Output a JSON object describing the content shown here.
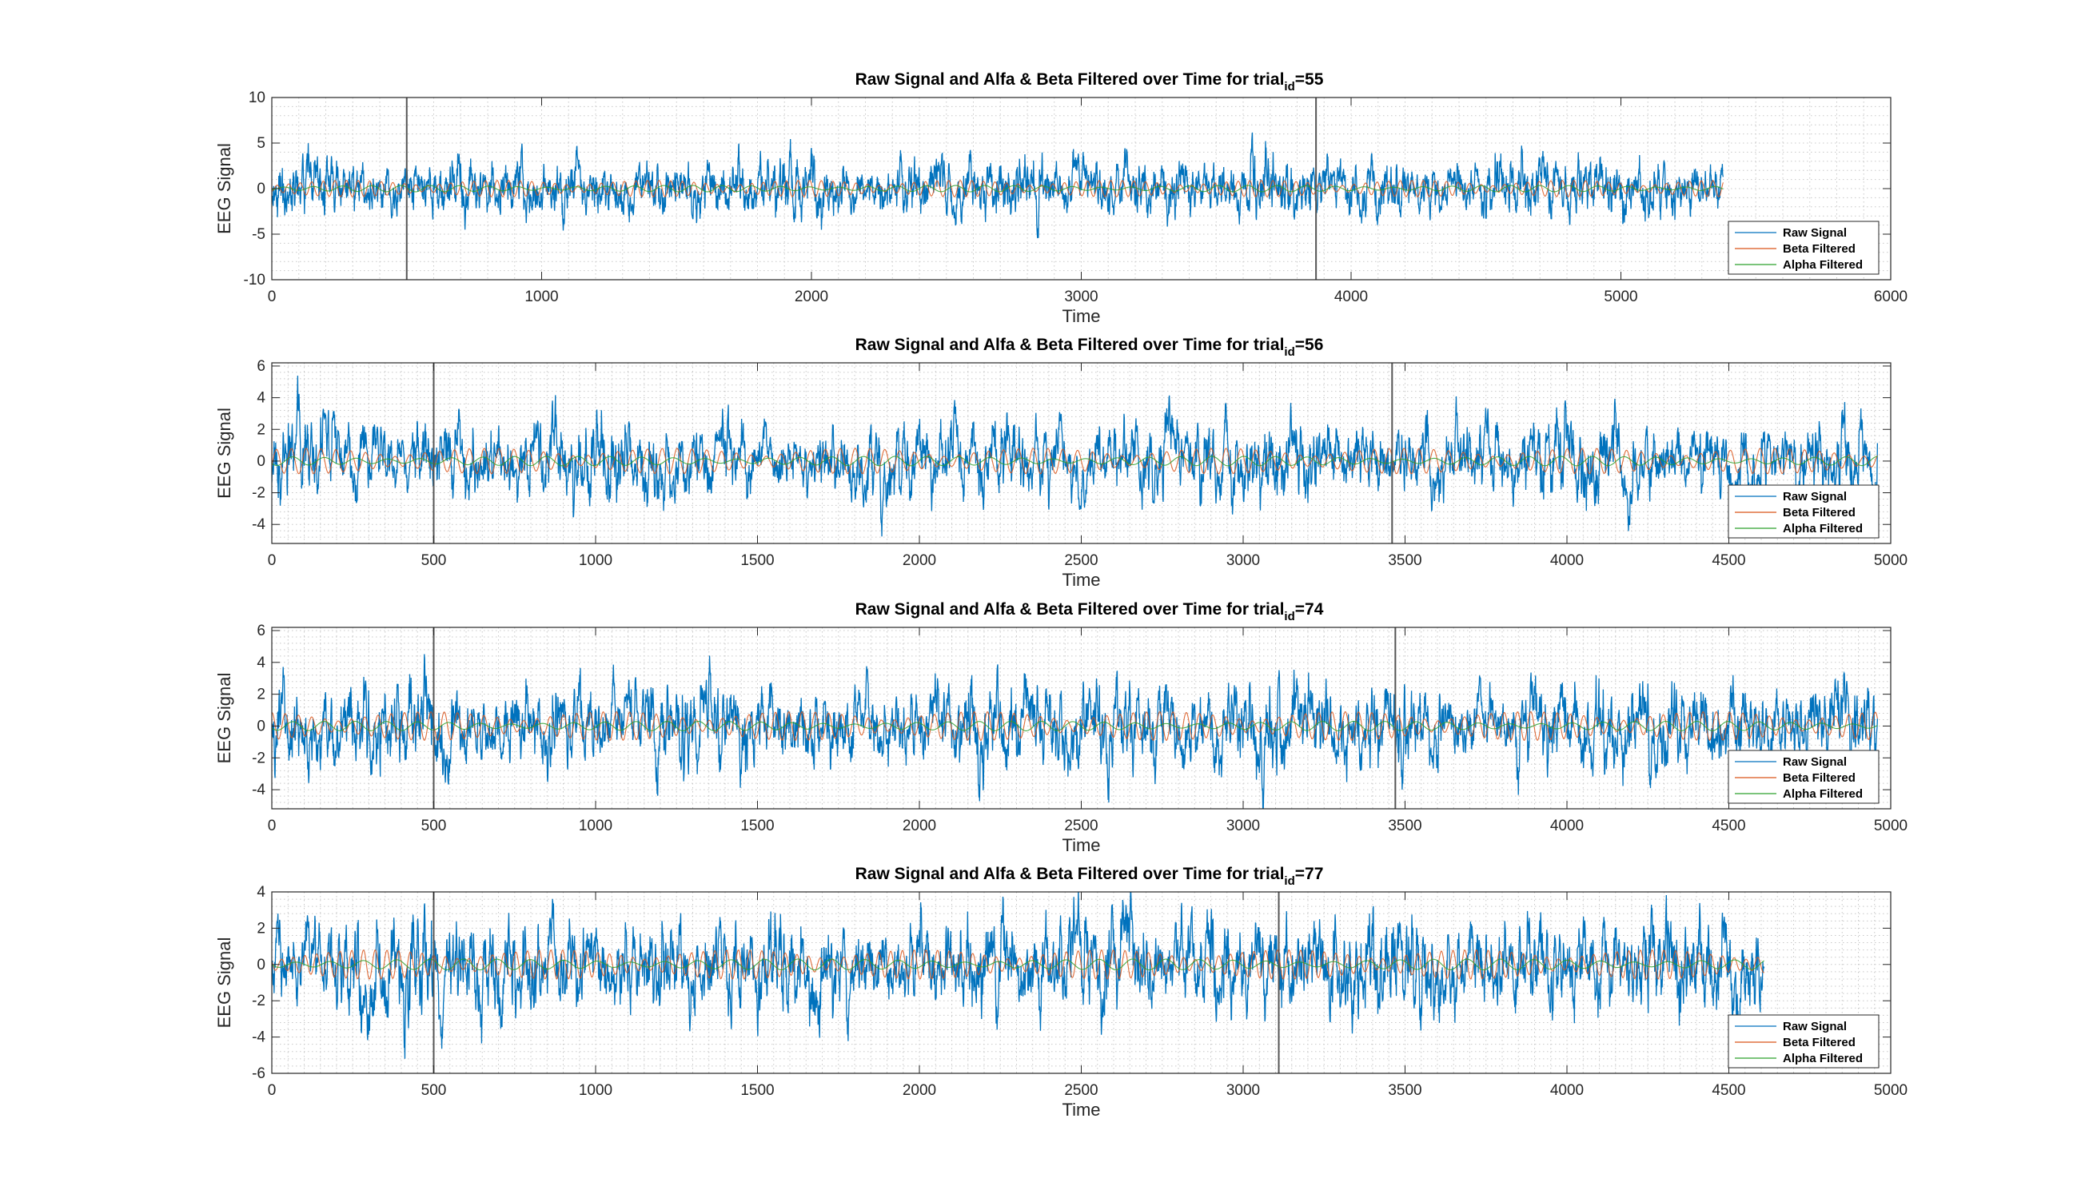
{
  "chart_data": [
    {
      "type": "line",
      "title": "Raw Signal and Alfa & Beta Filtered over Time for trial",
      "title_sub": "id",
      "title_suffix": "=55",
      "xlabel": "Time",
      "ylabel": "EEG Signal",
      "xlim": [
        0,
        6000
      ],
      "ylim": [
        -10,
        10
      ],
      "xticks": [
        0,
        1000,
        2000,
        3000,
        4000,
        5000,
        6000
      ],
      "yticks": [
        -10,
        -5,
        0,
        5,
        10
      ],
      "n_samples": 5380,
      "raw_amplitude": 1.5,
      "beta_amplitude": 0.9,
      "alpha_amplitude": 0.35,
      "event_lines": [
        500,
        3870
      ],
      "grid": "minor-dotted",
      "legend_position": "bottom-right",
      "series": [
        {
          "name": "Raw Signal",
          "color": "#0072BD"
        },
        {
          "name": "Beta Filtered",
          "color": "#D95319"
        },
        {
          "name": "Alpha Filtered",
          "color": "#2CA02C"
        }
      ]
    },
    {
      "type": "line",
      "title": "Raw Signal and Alfa & Beta Filtered over Time for trial",
      "title_sub": "id",
      "title_suffix": "=56",
      "xlabel": "Time",
      "ylabel": "EEG Signal",
      "xlim": [
        0,
        5000
      ],
      "ylim": [
        -5.2,
        6.2
      ],
      "xticks": [
        0,
        500,
        1000,
        1500,
        2000,
        2500,
        3000,
        3500,
        4000,
        4500,
        5000
      ],
      "yticks": [
        -4,
        -2,
        0,
        2,
        4,
        6
      ],
      "n_samples": 4960,
      "raw_amplitude": 1.2,
      "beta_amplitude": 0.8,
      "alpha_amplitude": 0.3,
      "event_lines": [
        500,
        3460
      ],
      "grid": "minor-dotted",
      "legend_position": "bottom-right",
      "series": [
        {
          "name": "Raw Signal",
          "color": "#0072BD"
        },
        {
          "name": "Beta Filtered",
          "color": "#D95319"
        },
        {
          "name": "Alpha Filtered",
          "color": "#2CA02C"
        }
      ]
    },
    {
      "type": "line",
      "title": "Raw Signal and Alfa & Beta Filtered over Time for trial",
      "title_sub": "id",
      "title_suffix": "=74",
      "xlabel": "Time",
      "ylabel": "EEG Signal",
      "xlim": [
        0,
        5000
      ],
      "ylim": [
        -5.2,
        6.2
      ],
      "xticks": [
        0,
        500,
        1000,
        1500,
        2000,
        2500,
        3000,
        3500,
        4000,
        4500,
        5000
      ],
      "yticks": [
        -4,
        -2,
        0,
        2,
        4,
        6
      ],
      "n_samples": 4960,
      "raw_amplitude": 1.3,
      "beta_amplitude": 0.9,
      "alpha_amplitude": 0.3,
      "event_lines": [
        500,
        3470
      ],
      "grid": "minor-dotted",
      "legend_position": "bottom-right",
      "series": [
        {
          "name": "Raw Signal",
          "color": "#0072BD"
        },
        {
          "name": "Beta Filtered",
          "color": "#D95319"
        },
        {
          "name": "Alpha Filtered",
          "color": "#2CA02C"
        }
      ]
    },
    {
      "type": "line",
      "title": "Raw Signal and Alfa & Beta Filtered over Time for trial",
      "title_sub": "id",
      "title_suffix": "=77",
      "xlabel": "Time",
      "ylabel": "EEG Signal",
      "xlim": [
        0,
        5000
      ],
      "ylim": [
        -6,
        4
      ],
      "xticks": [
        0,
        500,
        1000,
        1500,
        2000,
        2500,
        3000,
        3500,
        4000,
        4500,
        5000
      ],
      "yticks": [
        -6,
        -4,
        -2,
        0,
        2,
        4
      ],
      "n_samples": 4610,
      "raw_amplitude": 1.3,
      "beta_amplitude": 0.8,
      "alpha_amplitude": 0.3,
      "event_lines": [
        500,
        3110
      ],
      "grid": "minor-dotted",
      "legend_position": "bottom-right",
      "series": [
        {
          "name": "Raw Signal",
          "color": "#0072BD"
        },
        {
          "name": "Beta Filtered",
          "color": "#D95319"
        },
        {
          "name": "Alpha Filtered",
          "color": "#2CA02C"
        }
      ]
    }
  ]
}
